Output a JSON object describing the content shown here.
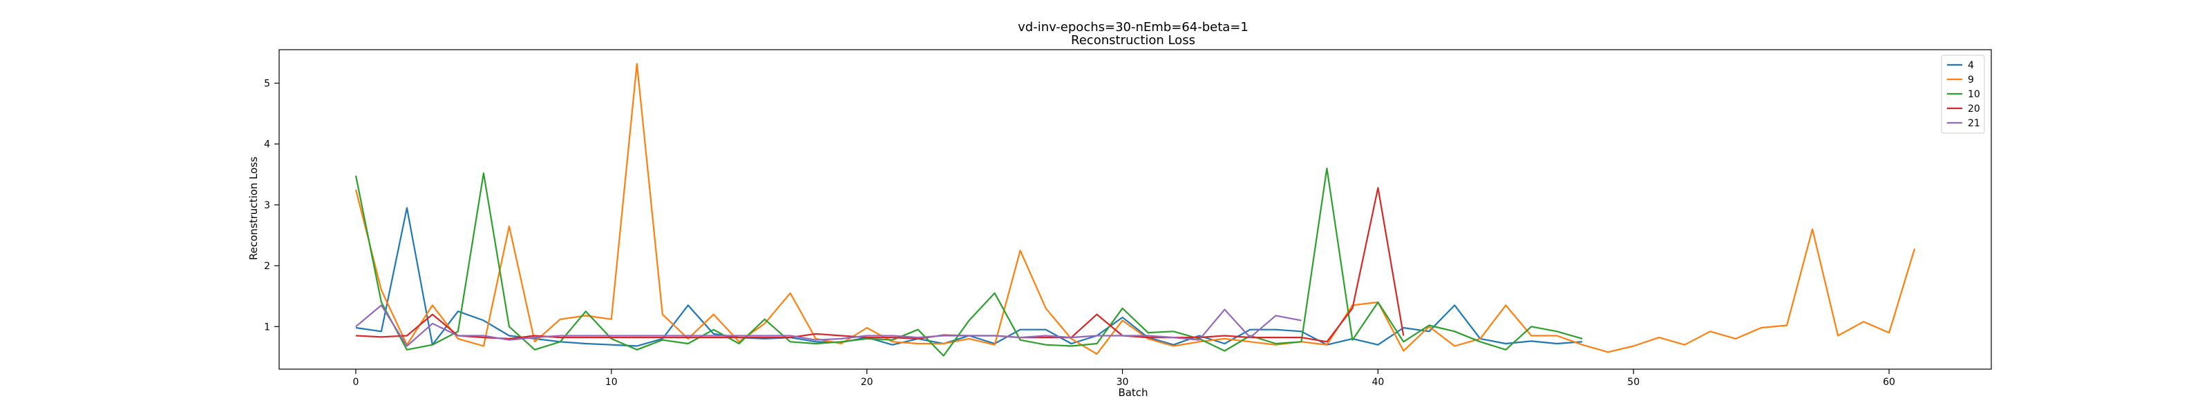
{
  "chart_data": {
    "type": "line",
    "title": "vd-inv-epochs=30-nEmb=64-beta=1",
    "subtitle": "Reconstruction Loss",
    "xlabel": "Batch",
    "ylabel": "Reconstruction Loss",
    "xlim": [
      -3,
      64
    ],
    "ylim": [
      0.3,
      5.55
    ],
    "xticks": [
      0,
      10,
      20,
      30,
      40,
      50,
      60
    ],
    "yticks": [
      1,
      2,
      3,
      4,
      5
    ],
    "grid": false,
    "legend_position": "top-right",
    "series": [
      {
        "name": "4",
        "color": "#1f77b4",
        "values": [
          0.98,
          0.92,
          2.95,
          0.7,
          1.25,
          1.1,
          0.85,
          0.8,
          0.75,
          0.72,
          0.7,
          0.68,
          0.8,
          1.35,
          0.88,
          0.82,
          0.8,
          0.82,
          0.75,
          0.74,
          0.82,
          0.7,
          0.8,
          0.72,
          0.85,
          0.72,
          0.95,
          0.95,
          0.72,
          0.85,
          1.15,
          0.82,
          0.7,
          0.85,
          0.72,
          0.95,
          0.95,
          0.92,
          0.7,
          0.8,
          0.7,
          0.98,
          0.92,
          1.35,
          0.8,
          0.72,
          0.76,
          0.72,
          0.75
        ]
      },
      {
        "name": "9",
        "color": "#ff7f0e",
        "values": [
          3.25,
          1.6,
          0.7,
          1.35,
          0.8,
          0.68,
          2.65,
          0.75,
          1.12,
          1.18,
          1.12,
          5.32,
          1.2,
          0.8,
          1.2,
          0.75,
          1.05,
          1.55,
          0.8,
          0.72,
          0.98,
          0.75,
          0.72,
          0.72,
          0.8,
          0.7,
          2.25,
          1.3,
          0.8,
          0.55,
          1.1,
          0.8,
          0.68,
          0.75,
          0.8,
          0.75,
          0.7,
          0.75,
          0.7,
          1.35,
          1.4,
          0.6,
          1.0,
          0.68,
          0.8,
          1.35,
          0.85,
          0.85,
          0.7,
          0.58,
          0.68,
          0.82,
          0.7,
          0.92,
          0.8,
          0.98,
          1.02,
          2.6,
          0.85,
          1.08,
          0.9,
          2.28
        ]
      },
      {
        "name": "10",
        "color": "#2ca02c",
        "values": [
          3.48,
          1.4,
          0.62,
          0.7,
          0.92,
          3.52,
          1.0,
          0.62,
          0.75,
          1.25,
          0.8,
          0.62,
          0.78,
          0.72,
          0.95,
          0.72,
          1.12,
          0.75,
          0.72,
          0.75,
          0.8,
          0.78,
          0.95,
          0.52,
          1.1,
          1.55,
          0.78,
          0.7,
          0.68,
          0.72,
          1.3,
          0.9,
          0.92,
          0.8,
          0.6,
          0.85,
          0.72,
          0.75,
          3.6,
          0.78,
          1.4,
          0.75,
          1.02,
          0.92,
          0.75,
          0.62,
          1.0,
          0.92,
          0.8
        ]
      },
      {
        "name": "20",
        "color": "#d62728",
        "values": [
          0.85,
          0.83,
          0.85,
          1.2,
          0.85,
          0.82,
          0.8,
          0.85,
          0.82,
          0.82,
          0.82,
          0.82,
          0.82,
          0.82,
          0.82,
          0.82,
          0.82,
          0.82,
          0.88,
          0.85,
          0.82,
          0.82,
          0.8,
          0.86,
          0.85,
          0.85,
          0.82,
          0.82,
          0.82,
          1.2,
          0.85,
          0.82,
          0.82,
          0.82,
          0.85,
          0.82,
          0.82,
          0.82,
          0.75,
          1.3,
          3.28,
          0.85
        ]
      },
      {
        "name": "21",
        "color": "#9467bd",
        "values": [
          1.0,
          1.35,
          0.68,
          1.05,
          0.85,
          0.85,
          0.78,
          0.82,
          0.85,
          0.85,
          0.85,
          0.85,
          0.85,
          0.85,
          0.85,
          0.85,
          0.85,
          0.85,
          0.78,
          0.8,
          0.85,
          0.85,
          0.82,
          0.85,
          0.85,
          0.85,
          0.82,
          0.85,
          0.82,
          0.85,
          0.85,
          0.85,
          0.82,
          0.78,
          1.28,
          0.82,
          1.18,
          1.1
        ]
      }
    ]
  }
}
